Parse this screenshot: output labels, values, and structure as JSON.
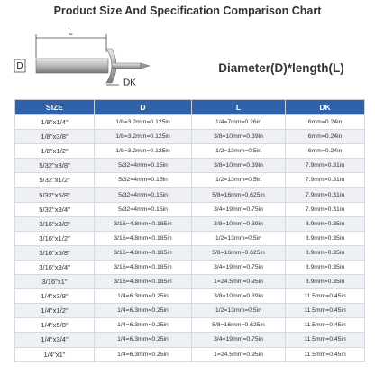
{
  "header": {
    "title": "Product Size And Specification Comparison Chart",
    "formula": "Diameter(D)*length(L)"
  },
  "diagram": {
    "labels": {
      "length": "L",
      "diameter": "D",
      "head": "DK"
    }
  },
  "table": {
    "columns": [
      "SIZE",
      "D",
      "L",
      "DK"
    ],
    "rows": [
      [
        "1/8\"x1/4\"",
        "1/8=3.2mm=0.125in",
        "1/4=7mm=0.26in",
        "6mm=0.24in"
      ],
      [
        "1/8\"x3/8\"",
        "1/8=3.2mm=0.125in",
        "3/8=10mm=0.39in",
        "6mm=0.24in"
      ],
      [
        "1/8\"x1/2\"",
        "1/8=3.2mm=0.125in",
        "1/2=13mm=0.5in",
        "6mm=0.24in"
      ],
      [
        "5/32\"x3/8\"",
        "5/32=4mm=0.15in",
        "3/8=10mm=0.39in",
        "7.9mm=0.31in"
      ],
      [
        "5/32\"x1/2\"",
        "5/32=4mm=0.15in",
        "1/2=13mm=0.5in",
        "7.9mm=0.31in"
      ],
      [
        "5/32\"x5/8\"",
        "5/32=4mm=0.15in",
        "5/8=16mm=0.625in",
        "7.9mm=0.31in"
      ],
      [
        "5/32\"x3/4\"",
        "5/32=4mm=0.15in",
        "3/4=19mm=0.75in",
        "7.9mm=0.31in"
      ],
      [
        "3/16\"x3/8\"",
        "3/16=4.8mm=0.185in",
        "3/8=10mm=0.39in",
        "8.9mm=0.35in"
      ],
      [
        "3/16\"x1/2\"",
        "3/16=4.8mm=0.185in",
        "1/2=13mm=0.5in",
        "8.9mm=0.35in"
      ],
      [
        "3/16\"x5/8\"",
        "3/16=4.8mm=0.185in",
        "5/8=16mm=0.625in",
        "8.9mm=0.35in"
      ],
      [
        "3/16\"x3/4\"",
        "3/16=4.8mm=0.185in",
        "3/4=19mm=0.75in",
        "8.9mm=0.35in"
      ],
      [
        "3/16\"x1\"",
        "3/16=4.8mm=0.185in",
        "1=24.5mm=0.95in",
        "8.9mm=0.35in"
      ],
      [
        "1/4\"x3/8\"",
        "1/4=6.3mm=0.25in",
        "3/8=10mm=0.39in",
        "11.5mm=0.45in"
      ],
      [
        "1/4\"x1/2\"",
        "1/4=6.3mm=0.25in",
        "1/2=13mm=0.5in",
        "11.5mm=0.45in"
      ],
      [
        "1/4\"x5/8\"",
        "1/4=6.3mm=0.25in",
        "5/8=16mm=0.625in",
        "11.5mm=0.45in"
      ],
      [
        "1/4\"x3/4\"",
        "1/4=6.3mm=0.25in",
        "3/4=19mm=0.75in",
        "11.5mm=0.45in"
      ],
      [
        "1/4\"x1\"",
        "1/4=6.3mm=0.25in",
        "1=24.5mm=0.95in",
        "11.5mm=0.45in"
      ]
    ]
  }
}
